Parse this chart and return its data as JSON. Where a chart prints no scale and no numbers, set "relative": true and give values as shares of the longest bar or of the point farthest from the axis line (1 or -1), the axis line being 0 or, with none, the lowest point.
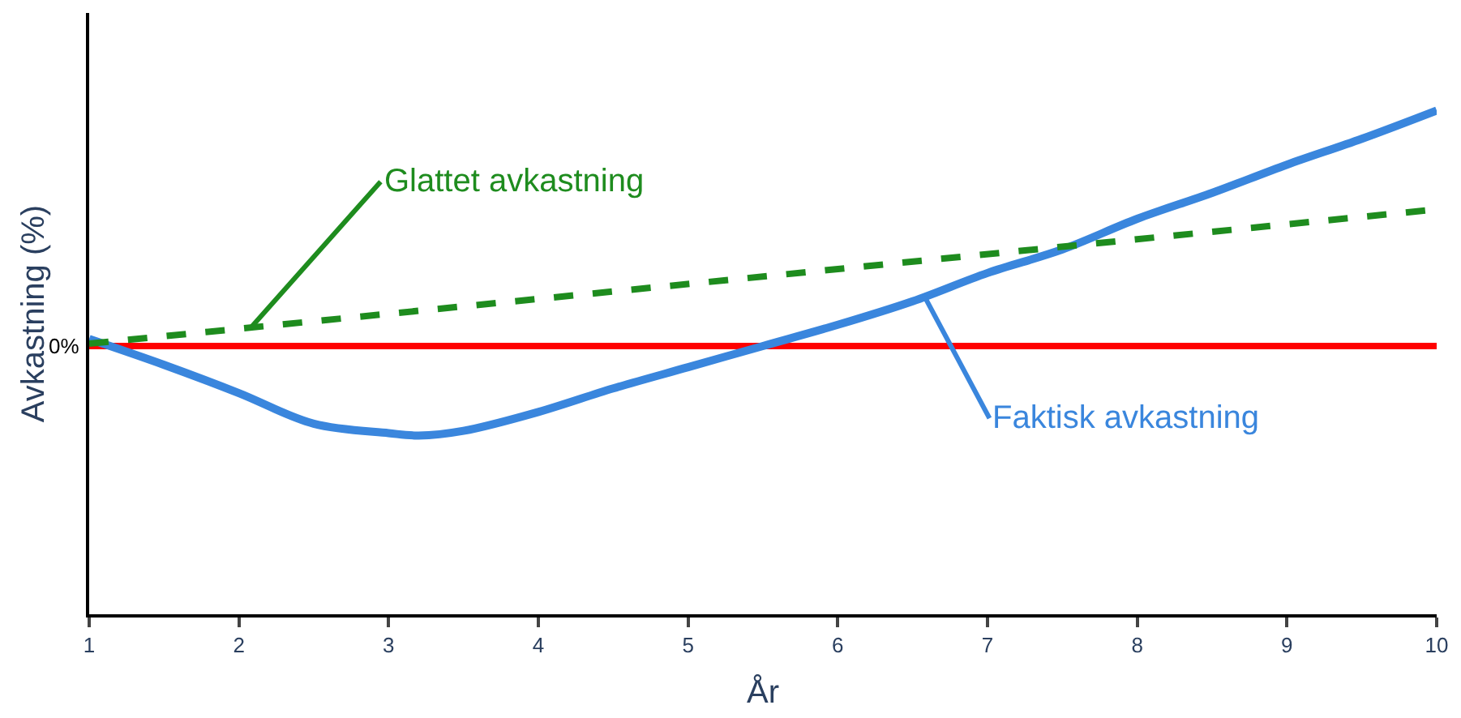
{
  "chart_data": {
    "type": "line",
    "relative": true,
    "xlabel": "År",
    "ylabel": "Avkastning (%)",
    "xlim": [
      1,
      10
    ],
    "xticks": [
      1,
      2,
      3,
      4,
      5,
      6,
      7,
      8,
      9,
      10
    ],
    "grid": false,
    "legend": false,
    "marker": "none",
    "series": [
      {
        "name": "Faktisk avkastning",
        "color": "#3a86dd",
        "line_style": "solid",
        "x": [
          1,
          1.5,
          2,
          2.5,
          3,
          3.2,
          3.5,
          4,
          4.5,
          5,
          5.5,
          6,
          6.5,
          7,
          7.5,
          8,
          8.5,
          9,
          9.5,
          10
        ],
        "values": [
          0.03,
          -0.08,
          -0.2,
          -0.33,
          -0.37,
          -0.38,
          -0.36,
          -0.28,
          -0.18,
          -0.09,
          0,
          0.09,
          0.19,
          0.31,
          0.41,
          0.54,
          0.65,
          0.77,
          0.88,
          1
        ]
      },
      {
        "name": "Glattet avkastning",
        "color": "#1e8c1e",
        "line_style": "dashed",
        "x": [
          1,
          10
        ],
        "values": [
          0.01,
          0.58
        ]
      }
    ],
    "ref_lines": [
      {
        "axis": "y",
        "value": 0,
        "label": "0%",
        "color": "#ff0000"
      }
    ]
  }
}
